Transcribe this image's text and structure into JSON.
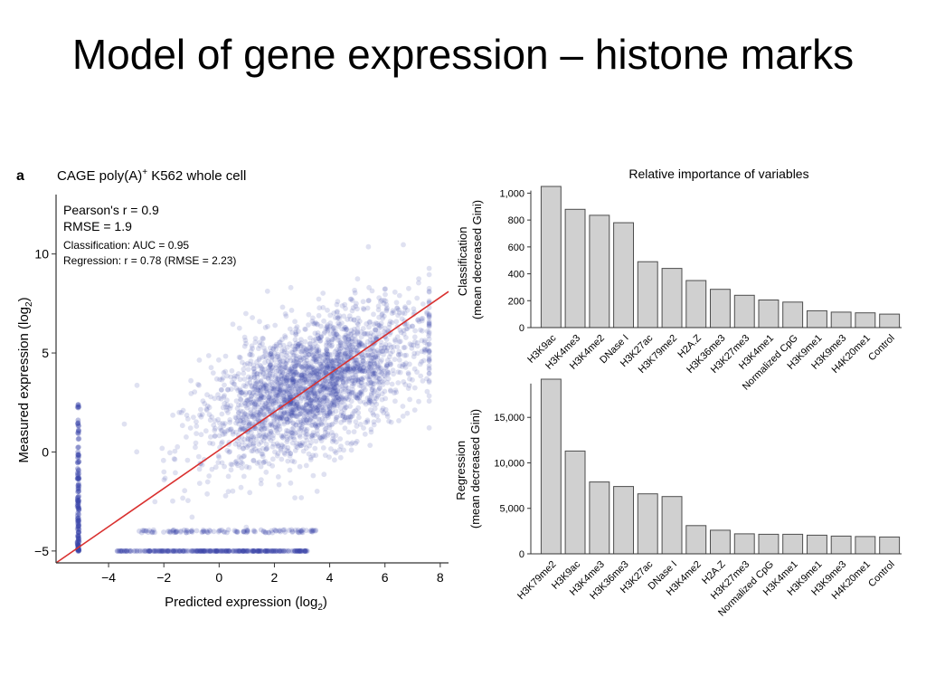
{
  "slide": {
    "title": "Model of gene expression – histone marks"
  },
  "colors": {
    "points": "#3a45a8",
    "fit_line": "#d9302f",
    "bars_fill": "#d0d0d0",
    "bars_stroke": "#4d4d4d",
    "axes": "#333333"
  },
  "chart_data": [
    {
      "type": "scatter",
      "panel_label": "a",
      "title": "CAGE poly(A)+ K562 whole cell",
      "title_parts": [
        "CAGE poly(A)",
        "+",
        " K562 whole cell"
      ],
      "xlabel": "Predicted expression (log2)",
      "xlabel_parts": [
        "Predicted expression (log",
        "2",
        ")"
      ],
      "ylabel": "Measured expression (log2)",
      "ylabel_parts": [
        "Measured expression (log",
        "2",
        ")"
      ],
      "xlim": [
        -5.9,
        8.3
      ],
      "ylim": [
        -5.6,
        13
      ],
      "xticks": [
        -4,
        -2,
        0,
        2,
        4,
        6,
        8
      ],
      "yticks": [
        -5,
        0,
        5,
        10
      ],
      "annotations": [
        "Pearson's r = 0.9",
        "RMSE = 1.9",
        "Classification: AUC = 0.95",
        "Regression: r = 0.78 (RMSE = 2.23)"
      ],
      "fit_line": {
        "x": [
          -5.9,
          8.3
        ],
        "y": [
          -5.6,
          8.1
        ]
      },
      "point_clusters": [
        {
          "kind": "main",
          "x_center": 3.4,
          "y_center": 3.4,
          "x_spread": 1.7,
          "y_spread": 1.9,
          "count": 2600
        },
        {
          "kind": "floor",
          "y": -5,
          "x_range": [
            -3.7,
            3.2
          ],
          "count": 300
        },
        {
          "kind": "ridge",
          "y": -4,
          "x_range": [
            -3,
            3.5
          ],
          "count": 120
        },
        {
          "kind": "column",
          "x": -5.1,
          "y_range": [
            -5,
            2.5
          ],
          "count": 140
        }
      ]
    },
    {
      "type": "bar",
      "title": "Relative importance of variables",
      "ylabel": "Classification (mean decreased Gini)",
      "ylabel_lines": [
        "Classification",
        "(mean decreased Gini)"
      ],
      "ylim": [
        0,
        1050
      ],
      "yticks": [
        0,
        200,
        400,
        600,
        800,
        1000
      ],
      "ytick_labels": [
        "0",
        "200",
        "400",
        "600",
        "800",
        "1,000"
      ],
      "categories": [
        "H3K9ac",
        "H3K4me3",
        "H3K4me2",
        "DNase I",
        "H3K27ac",
        "H3K79me2",
        "H2A.Z",
        "H3K36me3",
        "H3K27me3",
        "H3K4me1",
        "Normalized CpG",
        "H3K9me1",
        "H3K9me3",
        "H4K20me1",
        "Control"
      ],
      "values": [
        1050,
        880,
        835,
        780,
        490,
        440,
        350,
        285,
        240,
        205,
        190,
        125,
        115,
        110,
        100
      ]
    },
    {
      "type": "bar",
      "title": "",
      "ylabel": "Regression (mean decreased Gini)",
      "ylabel_lines": [
        "Regression",
        "(mean decreased Gini)"
      ],
      "ylim": [
        0,
        19300
      ],
      "yticks": [
        0,
        5000,
        10000,
        15000
      ],
      "ytick_labels": [
        "0",
        "5,000",
        "10,000",
        "15,000"
      ],
      "categories": [
        "H3K79me2",
        "H3K9ac",
        "H3K4me3",
        "H3K36me3",
        "H3K27ac",
        "DNase I",
        "H3K4me2",
        "H2A.Z",
        "H3K27me3",
        "Normalized CpG",
        "H3K4me1",
        "H3K9me1",
        "H3K9me3",
        "H4K20me1",
        "Control"
      ],
      "values": [
        19200,
        11300,
        7900,
        7400,
        6600,
        6300,
        3100,
        2600,
        2200,
        2150,
        2150,
        2050,
        1950,
        1900,
        1850
      ]
    }
  ]
}
